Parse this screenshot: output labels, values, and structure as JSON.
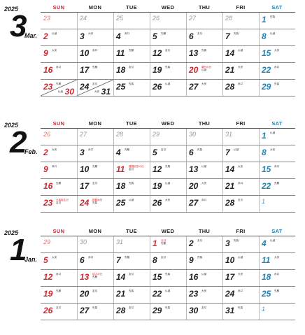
{
  "weekdays": [
    "SUN",
    "MON",
    "TUE",
    "WED",
    "THU",
    "FRI",
    "SAT"
  ],
  "months": [
    {
      "year": "2025",
      "num": "3",
      "name": "Mar.",
      "rows": [
        [
          {
            "d": "23",
            "t": "prev"
          },
          {
            "d": "24",
            "t": "prev"
          },
          {
            "d": "25",
            "t": "prev"
          },
          {
            "d": "26",
            "t": "prev"
          },
          {
            "d": "27",
            "t": "prev"
          },
          {
            "d": "28",
            "t": "prev"
          },
          {
            "d": "1",
            "t": "sat",
            "n": [
              "先負"
            ]
          }
        ],
        [
          {
            "d": "2",
            "t": "sun",
            "n": [
              "仏滅"
            ]
          },
          {
            "d": "3",
            "n": [
              "大安"
            ]
          },
          {
            "d": "4",
            "n": [
              "赤口"
            ]
          },
          {
            "d": "5",
            "n": [
              "先勝"
            ]
          },
          {
            "d": "6",
            "n": [
              "友引"
            ]
          },
          {
            "d": "7",
            "n": [
              "先負"
            ]
          },
          {
            "d": "8",
            "t": "sat",
            "n": [
              "仏滅"
            ]
          }
        ],
        [
          {
            "d": "9",
            "t": "sun",
            "n": [
              "大安"
            ]
          },
          {
            "d": "10",
            "n": [
              "赤口"
            ]
          },
          {
            "d": "11",
            "n": [
              "先勝"
            ]
          },
          {
            "d": "12",
            "n": [
              "友引"
            ]
          },
          {
            "d": "13",
            "n": [
              "先負"
            ]
          },
          {
            "d": "14",
            "n": [
              "仏滅"
            ]
          },
          {
            "d": "15",
            "t": "sat",
            "n": [
              "大安"
            ]
          }
        ],
        [
          {
            "d": "16",
            "t": "sun",
            "n": [
              "赤口"
            ]
          },
          {
            "d": "17",
            "n": [
              "先勝"
            ]
          },
          {
            "d": "18",
            "n": [
              "友引"
            ]
          },
          {
            "d": "19",
            "n": [
              "先負"
            ]
          },
          {
            "d": "20",
            "t": "hol",
            "n": [
              "春分の日",
              "仏滅"
            ],
            "red": true
          },
          {
            "d": "21",
            "n": [
              "大安"
            ]
          },
          {
            "d": "22",
            "t": "sat",
            "n": [
              "赤口"
            ]
          }
        ],
        [
          {
            "d": "23",
            "t": "sun",
            "n": [
              "先勝"
            ],
            "d2": "30",
            "n2": "仏滅"
          },
          {
            "d": "24",
            "n": [
              "友引"
            ],
            "d2": "31",
            "n2": "大安"
          },
          {
            "d": "25",
            "n": [
              "先負"
            ]
          },
          {
            "d": "26",
            "n": [
              "仏滅"
            ]
          },
          {
            "d": "27",
            "n": [
              "大安"
            ]
          },
          {
            "d": "28",
            "n": [
              "赤口"
            ]
          },
          {
            "d": "29",
            "t": "sat",
            "n": [
              "先負"
            ]
          }
        ]
      ]
    },
    {
      "year": "2025",
      "num": "2",
      "name": "Feb.",
      "rows": [
        [
          {
            "d": "26",
            "t": "prev"
          },
          {
            "d": "27",
            "t": "prev"
          },
          {
            "d": "28",
            "t": "prev"
          },
          {
            "d": "29",
            "t": "prev"
          },
          {
            "d": "30",
            "t": "prev"
          },
          {
            "d": "31",
            "t": "prev"
          },
          {
            "d": "1",
            "t": "sat",
            "n": [
              "仏滅"
            ]
          }
        ],
        [
          {
            "d": "2",
            "t": "sun",
            "n": [
              "大安"
            ]
          },
          {
            "d": "3",
            "n": [
              "赤口"
            ]
          },
          {
            "d": "4",
            "n": [
              "先勝"
            ]
          },
          {
            "d": "5",
            "n": [
              "友引"
            ]
          },
          {
            "d": "6",
            "n": [
              "先負"
            ]
          },
          {
            "d": "7",
            "n": [
              "仏滅"
            ]
          },
          {
            "d": "8",
            "t": "sat",
            "n": [
              "大安"
            ]
          }
        ],
        [
          {
            "d": "9",
            "t": "sun",
            "n": [
              "赤口"
            ]
          },
          {
            "d": "10",
            "n": [
              "先勝"
            ]
          },
          {
            "d": "11",
            "t": "hol",
            "n": [
              "建国記念の日",
              "友引"
            ],
            "red": true
          },
          {
            "d": "12",
            "n": [
              "先負"
            ]
          },
          {
            "d": "13",
            "n": [
              "仏滅"
            ]
          },
          {
            "d": "14",
            "n": [
              "大安"
            ]
          },
          {
            "d": "15",
            "t": "sat",
            "n": [
              "赤口"
            ]
          }
        ],
        [
          {
            "d": "16",
            "t": "sun",
            "n": [
              "先勝"
            ]
          },
          {
            "d": "17",
            "n": [
              "友引"
            ]
          },
          {
            "d": "18",
            "n": [
              "先負"
            ]
          },
          {
            "d": "19",
            "n": [
              "仏滅"
            ]
          },
          {
            "d": "20",
            "n": [
              "大安"
            ]
          },
          {
            "d": "21",
            "n": [
              "赤口"
            ]
          },
          {
            "d": "22",
            "t": "sat",
            "n": [
              "先勝"
            ]
          }
        ],
        [
          {
            "d": "23",
            "t": "sun",
            "n": [
              "天皇誕生日",
              "友引"
            ],
            "red": true
          },
          {
            "d": "24",
            "t": "hol",
            "n": [
              "振替休日",
              "先負"
            ],
            "red": true
          },
          {
            "d": "25",
            "n": [
              "仏滅"
            ]
          },
          {
            "d": "26",
            "n": [
              "大安"
            ]
          },
          {
            "d": "27",
            "n": [
              "赤口"
            ]
          },
          {
            "d": "28",
            "n": [
              "友引"
            ]
          },
          {
            "d": "1",
            "t": "satnext"
          }
        ]
      ]
    },
    {
      "year": "2025",
      "num": "1",
      "name": "Jan.",
      "rows": [
        [
          {
            "d": "29",
            "t": "prev"
          },
          {
            "d": "30",
            "t": "prev"
          },
          {
            "d": "31",
            "t": "prev"
          },
          {
            "d": "1",
            "t": "hol",
            "n": [
              "元日",
              "先勝"
            ],
            "red": true
          },
          {
            "d": "2",
            "n": [
              "友引"
            ]
          },
          {
            "d": "3",
            "n": [
              "先負"
            ]
          },
          {
            "d": "4",
            "t": "sat",
            "n": [
              "仏滅"
            ]
          }
        ],
        [
          {
            "d": "5",
            "t": "sun",
            "n": [
              "大安"
            ]
          },
          {
            "d": "6",
            "n": [
              "赤口"
            ]
          },
          {
            "d": "7",
            "n": [
              "先勝"
            ]
          },
          {
            "d": "8",
            "n": [
              "友引"
            ]
          },
          {
            "d": "9",
            "n": [
              "先負"
            ]
          },
          {
            "d": "10",
            "n": [
              "仏滅"
            ]
          },
          {
            "d": "11",
            "t": "sat",
            "n": [
              "大安"
            ]
          }
        ],
        [
          {
            "d": "12",
            "t": "sun",
            "n": [
              "赤口"
            ]
          },
          {
            "d": "13",
            "t": "hol",
            "n": [
              "成人の日",
              "先勝"
            ],
            "red": true
          },
          {
            "d": "14",
            "n": [
              "友引"
            ]
          },
          {
            "d": "15",
            "n": [
              "先負"
            ]
          },
          {
            "d": "16",
            "n": [
              "仏滅"
            ]
          },
          {
            "d": "17",
            "n": [
              "大安"
            ]
          },
          {
            "d": "18",
            "t": "sat",
            "n": [
              "赤口"
            ]
          }
        ],
        [
          {
            "d": "19",
            "t": "sun",
            "n": [
              "先勝"
            ]
          },
          {
            "d": "20",
            "n": [
              "友引"
            ]
          },
          {
            "d": "21",
            "n": [
              "先負"
            ]
          },
          {
            "d": "22",
            "n": [
              "仏滅"
            ]
          },
          {
            "d": "23",
            "n": [
              "大安"
            ]
          },
          {
            "d": "24",
            "n": [
              "赤口"
            ]
          },
          {
            "d": "25",
            "t": "sat",
            "n": [
              "先勝"
            ]
          }
        ],
        [
          {
            "d": "26",
            "t": "sun",
            "n": [
              "友引"
            ]
          },
          {
            "d": "27",
            "n": [
              "先負"
            ]
          },
          {
            "d": "28",
            "n": [
              "友引"
            ]
          },
          {
            "d": "29",
            "n": [
              "先負"
            ]
          },
          {
            "d": "30",
            "n": [
              "友引"
            ]
          },
          {
            "d": "31",
            "n": [
              "先負"
            ]
          },
          {
            "d": "1",
            "t": "satnext"
          }
        ]
      ]
    }
  ]
}
